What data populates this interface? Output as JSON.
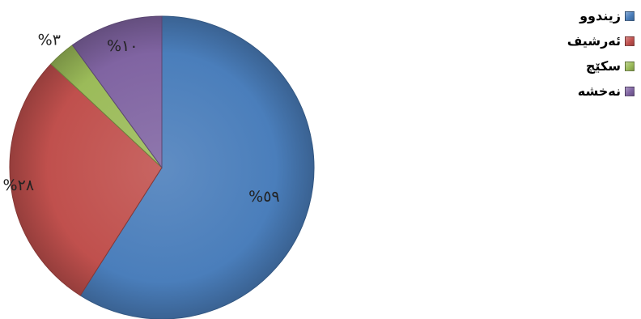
{
  "chart_data": {
    "type": "pie",
    "title": "",
    "start_angle_deg": 0,
    "direction": "clockwise",
    "slices": [
      {
        "label": "زیندوو",
        "value": 59,
        "display": "%٥٩",
        "color": "#4a7ebb"
      },
      {
        "label": "ئەرشیف",
        "value": 28,
        "display": "%٢٨",
        "color": "#c0504d"
      },
      {
        "label": "سکێچ",
        "value": 3,
        "display": "%٣",
        "color": "#9bbb59"
      },
      {
        "label": "نەخشە",
        "value": 10,
        "display": "%١٠",
        "color": "#8064a2"
      }
    ],
    "legend": {
      "position": "top-right"
    }
  }
}
